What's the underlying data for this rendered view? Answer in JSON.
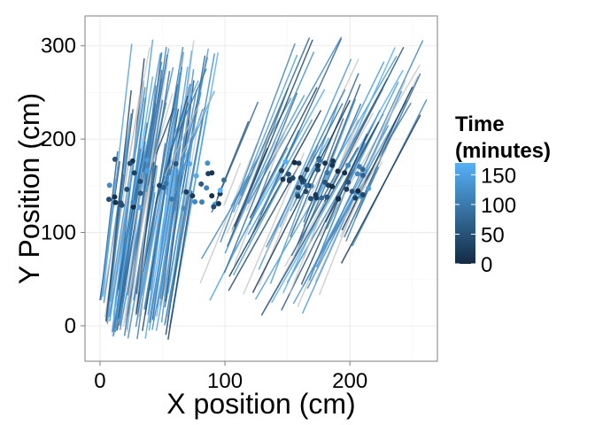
{
  "chart_data": {
    "type": "scatter",
    "title": "",
    "xlabel": "X position (cm)",
    "ylabel": "Y Position (cm)",
    "xlim": [
      -12,
      270
    ],
    "ylim": [
      -38,
      332
    ],
    "x_ticks": [
      0,
      100,
      200
    ],
    "y_ticks": [
      0,
      100,
      200,
      300
    ],
    "grid": true,
    "legend": {
      "title": "Time\n(minutes)",
      "title_lines": [
        "Time",
        "(minutes)"
      ],
      "placement": "right",
      "range": [
        0,
        170
      ],
      "ticks": [
        0,
        50,
        100,
        150
      ],
      "color_low": "#132B43",
      "color_high": "#56B1F7"
    },
    "colors": {
      "panel_border": "#7f7f7f",
      "grid_major": "#ebebeb",
      "grid_minor": "#f5f5f5",
      "faded_line": "#bfbfbf"
    },
    "series": [
      {
        "name": "left cluster",
        "x_range": [
          0,
          100
        ],
        "y_range": [
          -20,
          312
        ],
        "description": "near-vertical trajectories with points near y=155"
      },
      {
        "name": "right cluster",
        "x_range": [
          80,
          260
        ],
        "y_range": [
          10,
          310
        ],
        "description": "diagonal trajectories with points near y=155"
      }
    ]
  }
}
